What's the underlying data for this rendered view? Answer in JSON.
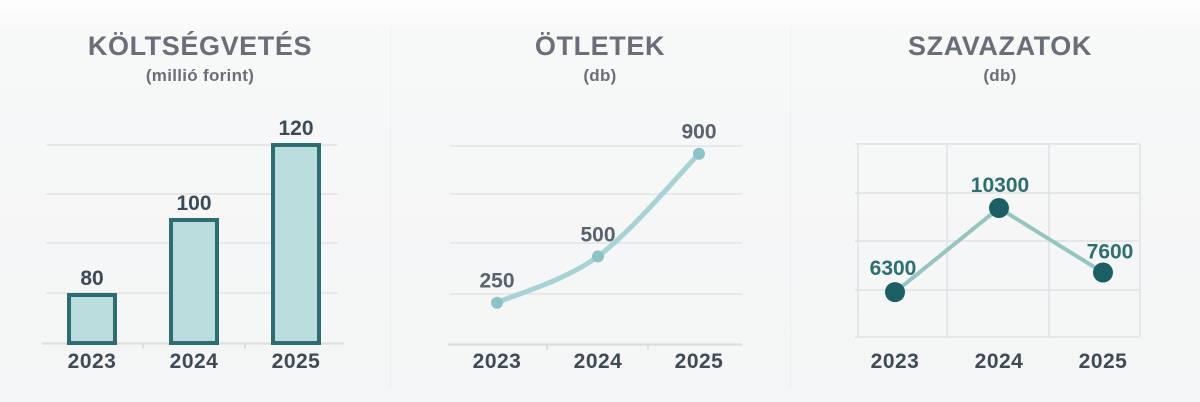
{
  "page": {
    "background_top": "#fdfdfd",
    "background_bottom": "#f4f5f6"
  },
  "chart_data": [
    {
      "type": "bar",
      "title": "KÖLTSÉGVETÉS",
      "subtitle": "(millió forint)",
      "unit": "millió forint",
      "categories": [
        "2023",
        "2024",
        "2025"
      ],
      "values": [
        80,
        100,
        120
      ],
      "value_labels": [
        "80",
        "100",
        "120"
      ],
      "grid": "horizontal",
      "legend": "none",
      "colors": {
        "bar_fill": "#b9dddd",
        "bar_border": "#2e6c6f",
        "value_label": "#3e4956",
        "axis_label": "#3f4a57",
        "gridline": "#e5e6e8",
        "axis_line": "#dcdee1"
      }
    },
    {
      "type": "line",
      "title": "ÖTLETEK",
      "subtitle": "(db)",
      "unit": "db",
      "categories": [
        "2023",
        "2024",
        "2025"
      ],
      "values": [
        250,
        500,
        900
      ],
      "value_labels": [
        "250",
        "500",
        "900"
      ],
      "curve": "smooth",
      "grid": "horizontal",
      "legend": "none",
      "colors": {
        "line": "#a8d3d5",
        "marker": "#8cc3c7",
        "value_label": "#59626f",
        "axis_label": "#3f4a57",
        "gridline": "#e5e6e8",
        "axis_line": "#dadce0"
      }
    },
    {
      "type": "line",
      "title": "SZAVAZATOK",
      "subtitle": "(db)",
      "unit": "db",
      "categories": [
        "2023",
        "2024",
        "2025"
      ],
      "values": [
        6300,
        10300,
        7600
      ],
      "value_labels": [
        "6300",
        "10300",
        "7600"
      ],
      "curve": "straight",
      "grid": "both",
      "legend": "none",
      "colors": {
        "line": "#96c5bf",
        "marker": "#1b5e63",
        "value_label": "#2c6e71",
        "axis_label": "#3f4a57",
        "gridline": "#e2e4e7"
      }
    }
  ]
}
